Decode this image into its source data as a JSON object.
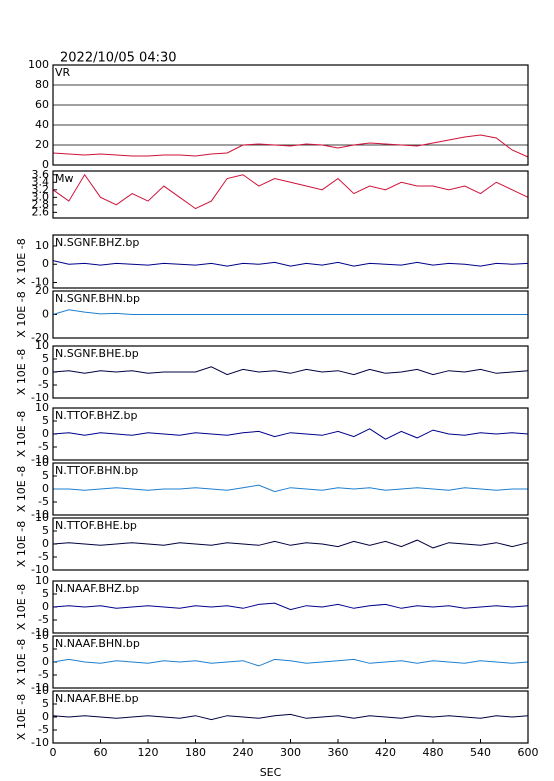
{
  "chart_data": [
    {
      "type": "line",
      "title": "2022/10/05 04:30",
      "label": "VR",
      "xlim": [
        0,
        600
      ],
      "ylim": [
        0,
        100
      ],
      "yticks": [
        0,
        20,
        40,
        60,
        80,
        100
      ],
      "grid": true,
      "series": [
        {
          "name": "VR",
          "color": "#d0103a",
          "x": [
            0,
            20,
            40,
            60,
            80,
            100,
            120,
            140,
            160,
            180,
            200,
            220,
            240,
            260,
            280,
            300,
            320,
            340,
            360,
            380,
            400,
            420,
            440,
            460,
            480,
            500,
            520,
            540,
            560,
            580,
            600
          ],
          "values": [
            12,
            11,
            10,
            11,
            10,
            9,
            9,
            10,
            10,
            9,
            11,
            12,
            20,
            21,
            20,
            19,
            21,
            20,
            17,
            20,
            22,
            21,
            20,
            19,
            22,
            25,
            28,
            30,
            27,
            15,
            8
          ]
        }
      ]
    },
    {
      "type": "line",
      "label": "Mw",
      "xlim": [
        0,
        600
      ],
      "ylim": [
        2.45,
        3.7
      ],
      "yticks": [
        {
          "value": 2.6,
          "label": "2.6"
        },
        2.8,
        {
          "value": 3,
          "label": "3.0"
        },
        3.2,
        3.4,
        3.6
      ],
      "series": [
        {
          "name": "Mw",
          "color": "#d0103a",
          "x": [
            0,
            20,
            40,
            60,
            80,
            100,
            120,
            140,
            160,
            180,
            200,
            220,
            240,
            260,
            280,
            300,
            320,
            340,
            360,
            380,
            400,
            420,
            440,
            460,
            480,
            500,
            520,
            540,
            560,
            580,
            600
          ],
          "values": [
            3.2,
            2.9,
            3.6,
            3.0,
            2.8,
            3.1,
            2.9,
            3.3,
            3.0,
            2.7,
            2.9,
            3.5,
            3.6,
            3.3,
            3.5,
            3.4,
            3.3,
            3.2,
            3.5,
            3.1,
            3.3,
            3.2,
            3.4,
            3.3,
            3.3,
            3.2,
            3.3,
            3.1,
            3.4,
            3.2,
            3.0
          ]
        }
      ]
    },
    {
      "type": "line",
      "label": "N.SGNF.BHZ.bp",
      "ylabel": "X 10E -8",
      "xlim": [
        0,
        600
      ],
      "ylim": [
        -13,
        16
      ],
      "yticks": [
        -10,
        0,
        10
      ],
      "series": [
        {
          "name": "N.SGNF.BHZ.bp",
          "color": "#00008b",
          "x": [
            0,
            20,
            40,
            60,
            80,
            100,
            120,
            140,
            160,
            180,
            200,
            220,
            240,
            260,
            280,
            300,
            320,
            340,
            360,
            380,
            400,
            420,
            440,
            460,
            480,
            500,
            520,
            540,
            560,
            580,
            600
          ],
          "values": [
            2,
            0,
            0.5,
            -0.5,
            0.5,
            0,
            -0.5,
            0.5,
            0,
            -0.5,
            0.5,
            -1,
            0.5,
            0,
            1,
            -1,
            0.5,
            -0.5,
            1,
            -1,
            0.5,
            0,
            -0.5,
            1,
            -0.5,
            0.5,
            0,
            -1,
            0.5,
            0,
            0.5
          ]
        }
      ]
    },
    {
      "type": "line",
      "label": "N.SGNF.BHN.bp",
      "ylabel": "X 10E -8",
      "xlim": [
        0,
        600
      ],
      "ylim": [
        -20,
        20
      ],
      "yticks": [
        -20,
        0,
        20
      ],
      "series": [
        {
          "name": "N.SGNF.BHN.bp",
          "color": "#1e7fd0",
          "x": [
            0,
            20,
            40,
            60,
            80,
            100,
            120,
            140,
            160,
            180,
            200,
            220,
            240,
            260,
            280,
            300,
            320,
            340,
            360,
            380,
            400,
            420,
            440,
            460,
            480,
            500,
            520,
            540,
            560,
            580,
            600
          ],
          "values": [
            0,
            4,
            2,
            0.5,
            1,
            0,
            0,
            0,
            0,
            0,
            0,
            0,
            0,
            0,
            0,
            0,
            0,
            0,
            0,
            0,
            0,
            0,
            0,
            0,
            0,
            0,
            0,
            0,
            0,
            0,
            0
          ]
        }
      ]
    },
    {
      "type": "line",
      "label": "N.SGNF.BHE.bp",
      "ylabel": "X 10E -8",
      "xlim": [
        0,
        600
      ],
      "ylim": [
        -10,
        10
      ],
      "yticks": [
        -10,
        -5,
        0,
        5,
        10
      ],
      "series": [
        {
          "name": "N.SGNF.BHE.bp",
          "color": "#000040",
          "x": [
            0,
            20,
            40,
            60,
            80,
            100,
            120,
            140,
            160,
            180,
            200,
            220,
            240,
            260,
            280,
            300,
            320,
            340,
            360,
            380,
            400,
            420,
            440,
            460,
            480,
            500,
            520,
            540,
            560,
            580,
            600
          ],
          "values": [
            0,
            0.5,
            -0.5,
            0.5,
            0,
            0.5,
            -0.5,
            0,
            0,
            0,
            2,
            -1,
            1,
            0,
            0.5,
            -0.5,
            1,
            0,
            0.5,
            -1,
            1,
            -0.5,
            0,
            1,
            -1,
            0.5,
            0,
            1,
            -0.5,
            0,
            0.5
          ]
        }
      ]
    },
    {
      "type": "line",
      "label": "N.TTOF.BHZ.bp",
      "ylabel": "X 10E -8",
      "xlim": [
        0,
        600
      ],
      "ylim": [
        -10,
        10
      ],
      "yticks": [
        -10,
        -5,
        0,
        5,
        10
      ],
      "series": [
        {
          "name": "N.TTOF.BHZ.bp",
          "color": "#00008b",
          "x": [
            0,
            20,
            40,
            60,
            80,
            100,
            120,
            140,
            160,
            180,
            200,
            220,
            240,
            260,
            280,
            300,
            320,
            340,
            360,
            380,
            400,
            420,
            440,
            460,
            480,
            500,
            520,
            540,
            560,
            580,
            600
          ],
          "values": [
            0,
            0.5,
            -0.5,
            0.5,
            0,
            -0.5,
            0.5,
            0,
            -0.5,
            0.5,
            0,
            -0.5,
            0.5,
            1,
            -1,
            0.5,
            0,
            -0.5,
            1,
            -1,
            2,
            -2,
            1,
            -1.5,
            1.5,
            0,
            -0.5,
            0.5,
            0,
            0.5,
            0
          ]
        }
      ]
    },
    {
      "type": "line",
      "label": "N.TTOF.BHN.bp",
      "ylabel": "X 10E -8",
      "xlim": [
        0,
        600
      ],
      "ylim": [
        -10,
        10
      ],
      "yticks": [
        -10,
        -5,
        0,
        5,
        10
      ],
      "series": [
        {
          "name": "N.TTOF.BHN.bp",
          "color": "#1e7fd0",
          "x": [
            0,
            20,
            40,
            60,
            80,
            100,
            120,
            140,
            160,
            180,
            200,
            220,
            240,
            260,
            280,
            300,
            320,
            340,
            360,
            380,
            400,
            420,
            440,
            460,
            480,
            500,
            520,
            540,
            560,
            580,
            600
          ],
          "values": [
            0,
            0,
            -0.5,
            0,
            0.5,
            0,
            -0.5,
            0,
            0,
            0.5,
            0,
            -0.5,
            0.5,
            1.5,
            -1,
            0.5,
            0,
            -0.5,
            0.5,
            0,
            0.5,
            -0.5,
            0,
            0.5,
            0,
            -0.5,
            0.5,
            0,
            -0.5,
            0,
            0
          ]
        }
      ]
    },
    {
      "type": "line",
      "label": "N.TTOF.BHE.bp",
      "ylabel": "X 10E -8",
      "xlim": [
        0,
        600
      ],
      "ylim": [
        -10,
        10
      ],
      "yticks": [
        -10,
        -5,
        0,
        5,
        10
      ],
      "series": [
        {
          "name": "N.TTOF.BHE.bp",
          "color": "#000040",
          "x": [
            0,
            20,
            40,
            60,
            80,
            100,
            120,
            140,
            160,
            180,
            200,
            220,
            240,
            260,
            280,
            300,
            320,
            340,
            360,
            380,
            400,
            420,
            440,
            460,
            480,
            500,
            520,
            540,
            560,
            580,
            600
          ],
          "values": [
            0,
            0.5,
            0,
            -0.5,
            0,
            0.5,
            0,
            -0.5,
            0.5,
            0,
            -0.5,
            0.5,
            0,
            -0.5,
            1,
            -0.5,
            0.5,
            0,
            -1,
            1,
            -0.5,
            1,
            -1,
            1.5,
            -1.5,
            0.5,
            0,
            -0.5,
            0.5,
            -1,
            0.5
          ]
        }
      ]
    },
    {
      "type": "line",
      "label": "N.NAAF.BHZ.bp",
      "ylabel": "X 10E -8",
      "xlim": [
        0,
        600
      ],
      "ylim": [
        -10,
        10
      ],
      "yticks": [
        -10,
        -5,
        0,
        5,
        10
      ],
      "series": [
        {
          "name": "N.NAAF.BHZ.bp",
          "color": "#00008b",
          "x": [
            0,
            20,
            40,
            60,
            80,
            100,
            120,
            140,
            160,
            180,
            200,
            220,
            240,
            260,
            280,
            300,
            320,
            340,
            360,
            380,
            400,
            420,
            440,
            460,
            480,
            500,
            520,
            540,
            560,
            580,
            600
          ],
          "values": [
            0,
            0.5,
            0,
            0.5,
            -0.5,
            0,
            0.5,
            0,
            -0.5,
            0.5,
            0,
            0.5,
            -0.5,
            1,
            1.5,
            -1,
            0.5,
            0,
            1,
            -0.5,
            0.5,
            1,
            -0.5,
            0.5,
            0,
            0.5,
            -0.5,
            0,
            0.5,
            0,
            0.5
          ]
        }
      ]
    },
    {
      "type": "line",
      "label": "N.NAAF.BHN.bp",
      "ylabel": "X 10E -8",
      "xlim": [
        0,
        600
      ],
      "ylim": [
        -10,
        10
      ],
      "yticks": [
        -10,
        -5,
        0,
        5,
        10
      ],
      "series": [
        {
          "name": "N.NAAF.BHN.bp",
          "color": "#1e7fd0",
          "x": [
            0,
            20,
            40,
            60,
            80,
            100,
            120,
            140,
            160,
            180,
            200,
            220,
            240,
            260,
            280,
            300,
            320,
            340,
            360,
            380,
            400,
            420,
            440,
            460,
            480,
            500,
            520,
            540,
            560,
            580,
            600
          ],
          "values": [
            0,
            1,
            0,
            -0.5,
            0.5,
            0,
            -0.5,
            0.5,
            0,
            0.5,
            -0.5,
            0,
            0.5,
            -1.5,
            1,
            0.5,
            -0.5,
            0,
            0.5,
            1,
            -0.5,
            0,
            0.5,
            -0.5,
            0.5,
            0,
            -0.5,
            0.5,
            0,
            -0.5,
            0
          ]
        }
      ]
    },
    {
      "type": "line",
      "label": "N.NAAF.BHE.bp",
      "ylabel": "X 10E -8",
      "xlabel": "SEC",
      "xlim": [
        0,
        600
      ],
      "ylim": [
        -10,
        10
      ],
      "yticks": [
        -10,
        -5,
        0,
        5,
        10
      ],
      "xticks": [
        0,
        60,
        120,
        180,
        240,
        300,
        360,
        420,
        480,
        540,
        600
      ],
      "series": [
        {
          "name": "N.NAAF.BHE.bp",
          "color": "#000040",
          "x": [
            0,
            20,
            40,
            60,
            80,
            100,
            120,
            140,
            160,
            180,
            200,
            220,
            240,
            260,
            280,
            300,
            320,
            340,
            360,
            380,
            400,
            420,
            440,
            460,
            480,
            500,
            520,
            540,
            560,
            580,
            600
          ],
          "values": [
            0.5,
            0,
            0.5,
            0,
            -0.5,
            0,
            0.5,
            0,
            -0.5,
            0.5,
            -1,
            0.5,
            0,
            -0.5,
            0.5,
            1,
            -0.5,
            0,
            0.5,
            -0.5,
            0.5,
            0,
            -0.5,
            0.5,
            0,
            0.5,
            0,
            -0.5,
            0.5,
            0,
            0.5
          ]
        }
      ]
    }
  ]
}
